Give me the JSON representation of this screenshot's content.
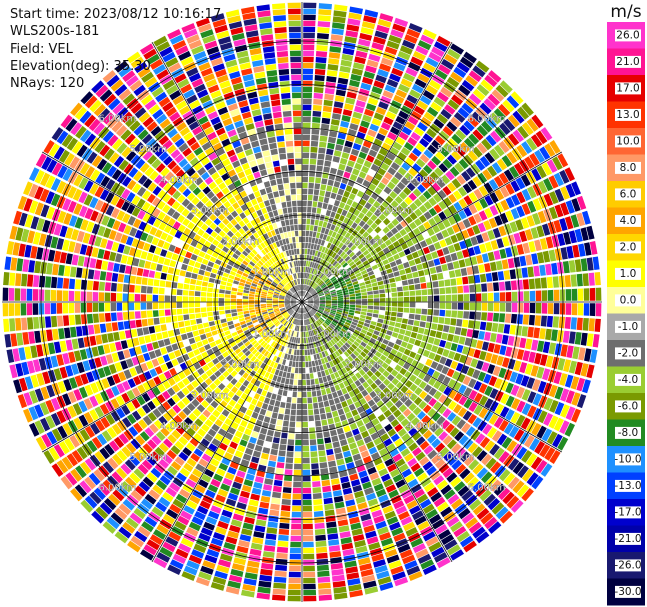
{
  "header": {
    "start_time": "Start time: 2023/08/12 10:16:17",
    "instrument": "WLS200s-181",
    "field": "Field: VEL",
    "elevation": "Elevation(deg): 35.30",
    "nrays": "NRays: 120"
  },
  "ppi": {
    "nrays": 120,
    "range_ring_labels": [
      "1.00km",
      "2.00km",
      "3.00km",
      "4.00km",
      "5.00km",
      "6.00km"
    ]
  },
  "colorbar": {
    "unit": "m/s",
    "tick_labels": [
      "26.0",
      "21.0",
      "17.0",
      "13.0",
      "10.0",
      "8.0",
      "6.0",
      "4.0",
      "2.0",
      "1.0",
      "0.0",
      "-1.0",
      "-2.0",
      "-4.0",
      "-6.0",
      "-8.0",
      "-10.0",
      "-13.0",
      "-17.0",
      "-21.0",
      "-26.0",
      "-30.0"
    ],
    "colors": [
      "#ff33cc",
      "#ff1493",
      "#e60000",
      "#ff3300",
      "#ff6633",
      "#ff9966",
      "#ffcc00",
      "#ffa500",
      "#ffd700",
      "#ffff00",
      "#ffff99",
      "#a9a9a9",
      "#6e6e6e",
      "#9acd32",
      "#7a9a01",
      "#228b22",
      "#1e90ff",
      "#0040ff",
      "#0000cd",
      "#0000aa",
      "#191970",
      "#000040"
    ]
  }
}
